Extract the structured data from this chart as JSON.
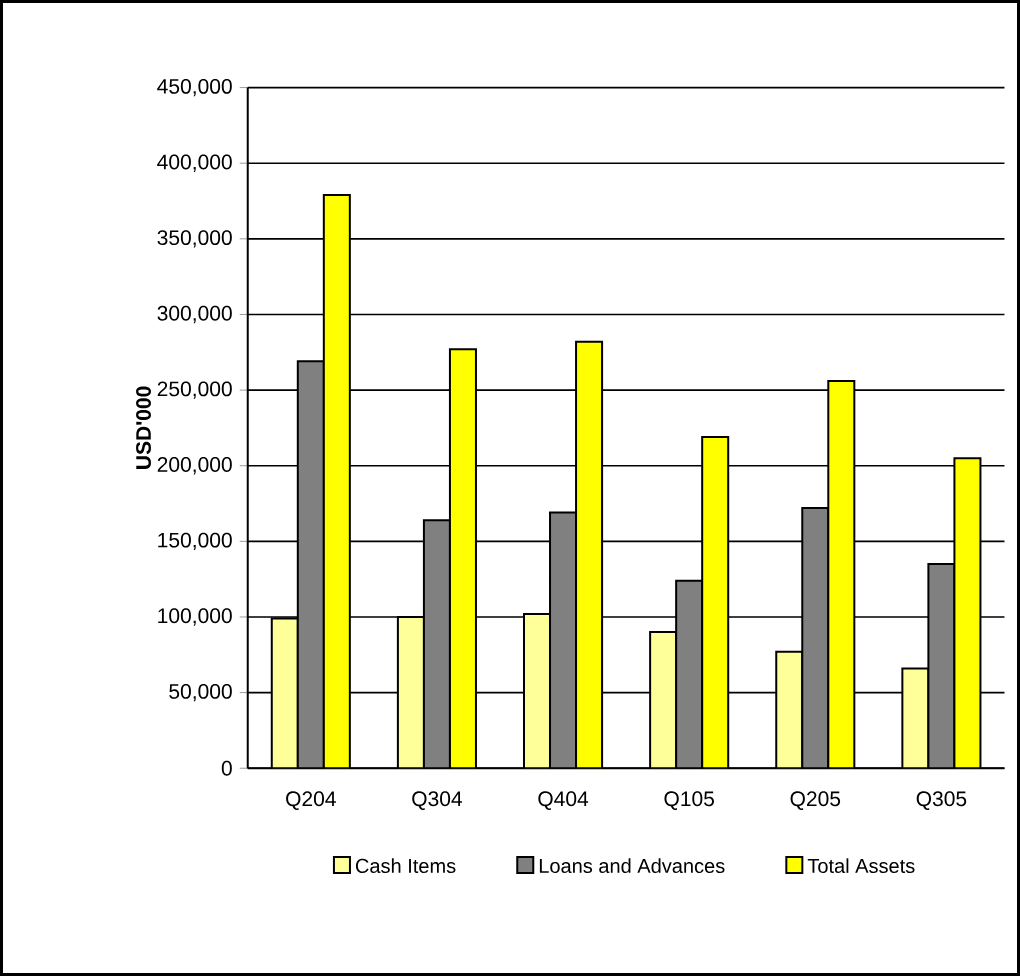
{
  "chart_data": {
    "type": "bar",
    "ylabel": "USD'000",
    "categories": [
      "Q204",
      "Q304",
      "Q404",
      "Q105",
      "Q205",
      "Q305"
    ],
    "series": [
      {
        "name": "Cash Items",
        "color": "#ffff99",
        "values": [
          99000,
          100000,
          102000,
          90000,
          77000,
          66000
        ]
      },
      {
        "name": "Loans and Advances",
        "color": "#808080",
        "values": [
          269000,
          164000,
          169000,
          124000,
          172000,
          135000
        ]
      },
      {
        "name": "Total Assets",
        "color": "#ffff00",
        "values": [
          379000,
          277000,
          282000,
          219000,
          256000,
          205000
        ]
      }
    ],
    "ylim": [
      0,
      450000
    ],
    "yticks": [
      0,
      {
        "value": 50000,
        "label": "50,000"
      },
      {
        "value": 100000,
        "label": "100,000"
      },
      {
        "value": 150000,
        "label": "150,000"
      },
      {
        "value": 200000,
        "label": "200,000"
      },
      {
        "value": 250000,
        "label": "250,000"
      },
      {
        "value": 300000,
        "label": "300,000"
      },
      {
        "value": 350000,
        "label": "350,000"
      },
      {
        "value": 400000,
        "label": "400,000"
      },
      {
        "value": 450000,
        "label": "450,000"
      }
    ],
    "grid": "y",
    "legend": "bottom"
  }
}
